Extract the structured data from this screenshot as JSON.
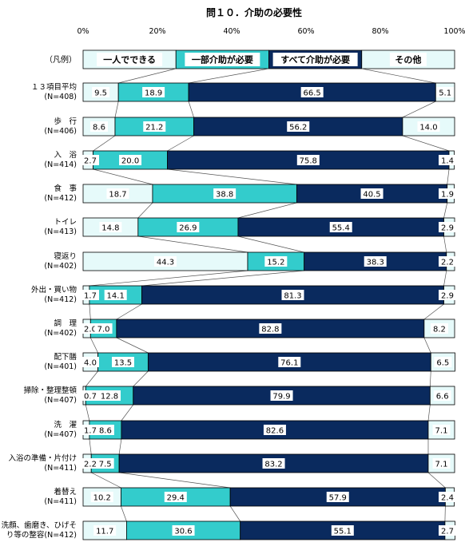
{
  "chart_data": {
    "type": "bar",
    "orientation": "horizontal",
    "stacked": true,
    "percent_stacked": true,
    "title": "問１０．介助の必要性",
    "xlim": [
      0,
      100
    ],
    "x_ticks": [
      "0%",
      "20%",
      "40%",
      "60%",
      "80%",
      "100%"
    ],
    "grid": false,
    "legend_row_label": "（凡例）",
    "legend_placement": "top (first row)",
    "categories": [
      {
        "line1": "１３項目平均",
        "line2": "(N=408)"
      },
      {
        "line1": "歩　行",
        "line2": "(N=406)"
      },
      {
        "line1": "入　浴",
        "line2": "(N=414)"
      },
      {
        "line1": "食　事",
        "line2": "(N=412)"
      },
      {
        "line1": "トイレ",
        "line2": "(N=413)"
      },
      {
        "line1": "寝返り",
        "line2": "(N=402)"
      },
      {
        "line1": "外出・買い物",
        "line2": "(N=412)"
      },
      {
        "line1": "調　理",
        "line2": "(N=402)"
      },
      {
        "line1": "配下膳",
        "line2": "(N=401)"
      },
      {
        "line1": "掃除・整理整頓",
        "line2": "(N=407)"
      },
      {
        "line1": "洗　濯",
        "line2": "(N=407)"
      },
      {
        "line1": "入浴の準備・片付け",
        "line2": "(N=411)"
      },
      {
        "line1": "着替え",
        "line2": "(N=411)"
      },
      {
        "line1": "洗顔、歯磨き、ひげそ",
        "line2": "り等の整容(N=412)"
      }
    ],
    "series": [
      {
        "name": "一人でできる",
        "color": "#e6fafa",
        "values": [
          9.5,
          8.6,
          2.7,
          18.7,
          14.8,
          44.3,
          1.7,
          2.0,
          4.0,
          0.7,
          1.7,
          2.2,
          10.2,
          11.7
        ]
      },
      {
        "name": "一部介助が必要",
        "color": "#33cccc",
        "values": [
          18.9,
          21.2,
          20.0,
          38.8,
          26.9,
          15.2,
          14.1,
          7.0,
          13.5,
          12.8,
          8.6,
          7.5,
          29.4,
          30.6
        ]
      },
      {
        "name": "すべて介助が必要",
        "color": "#0a2a5e",
        "values": [
          66.5,
          56.2,
          75.8,
          40.5,
          55.4,
          38.3,
          81.3,
          82.8,
          76.1,
          79.9,
          82.6,
          83.2,
          57.9,
          55.1
        ]
      },
      {
        "name": "その他",
        "color": "#e6fafa",
        "values": [
          5.1,
          14.0,
          1.4,
          1.9,
          2.9,
          2.2,
          2.9,
          8.2,
          6.5,
          6.6,
          7.1,
          7.1,
          2.4,
          2.7
        ]
      }
    ],
    "legend_segments": [
      25,
      25,
      25,
      25
    ]
  }
}
